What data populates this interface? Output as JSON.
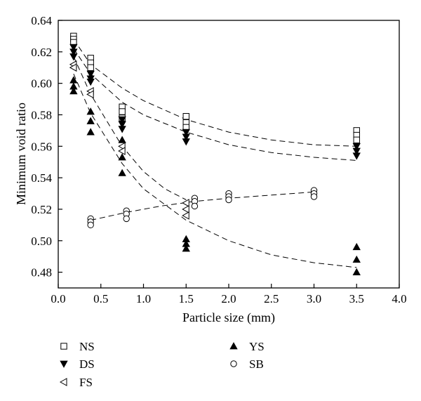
{
  "chart_data": {
    "type": "scatter",
    "title": "",
    "xlabel": "Particle size (mm)",
    "ylabel": "Minimum void ratio",
    "xlim": [
      0.0,
      4.0
    ],
    "ylim": [
      0.47,
      0.64
    ],
    "xticks": [
      0.0,
      0.5,
      1.0,
      1.5,
      2.0,
      2.5,
      3.0,
      3.5,
      4.0
    ],
    "xtick_labels": [
      "0.0",
      "0.5",
      "1.0",
      "1.5",
      "2.0",
      "2.5",
      "3.0",
      "3.5",
      "4.0"
    ],
    "yticks": [
      0.48,
      0.5,
      0.52,
      0.54,
      0.56,
      0.58,
      0.6,
      0.62,
      0.64
    ],
    "ytick_labels": [
      "0.48",
      "0.50",
      "0.52",
      "0.54",
      "0.56",
      "0.58",
      "0.60",
      "0.62",
      "0.64"
    ],
    "grid": false,
    "legend_position": "bottom",
    "series": [
      {
        "name": "NS",
        "marker": "square-open",
        "points": [
          [
            0.18,
            0.63
          ],
          [
            0.18,
            0.628
          ],
          [
            0.18,
            0.626
          ],
          [
            0.38,
            0.616
          ],
          [
            0.38,
            0.613
          ],
          [
            0.38,
            0.61
          ],
          [
            0.75,
            0.585
          ],
          [
            0.75,
            0.582
          ],
          [
            0.75,
            0.578
          ],
          [
            1.5,
            0.579
          ],
          [
            1.5,
            0.575
          ],
          [
            1.5,
            0.572
          ],
          [
            3.5,
            0.57
          ],
          [
            3.5,
            0.567
          ],
          [
            3.5,
            0.564
          ]
        ],
        "trend": [
          [
            0.18,
            0.628
          ],
          [
            0.38,
            0.612
          ],
          [
            0.75,
            0.597
          ],
          [
            1.0,
            0.589
          ],
          [
            1.5,
            0.577
          ],
          [
            2.0,
            0.569
          ],
          [
            2.5,
            0.564
          ],
          [
            3.0,
            0.561
          ],
          [
            3.5,
            0.56
          ]
        ]
      },
      {
        "name": "DS",
        "marker": "triangle-down-filled",
        "points": [
          [
            0.18,
            0.623
          ],
          [
            0.18,
            0.62
          ],
          [
            0.18,
            0.617
          ],
          [
            0.38,
            0.606
          ],
          [
            0.38,
            0.603
          ],
          [
            0.38,
            0.601
          ],
          [
            0.75,
            0.577
          ],
          [
            0.75,
            0.574
          ],
          [
            0.75,
            0.571
          ],
          [
            1.5,
            0.569
          ],
          [
            1.5,
            0.566
          ],
          [
            1.5,
            0.563
          ],
          [
            3.5,
            0.56
          ],
          [
            3.5,
            0.557
          ],
          [
            3.5,
            0.554
          ]
        ],
        "trend": [
          [
            0.18,
            0.622
          ],
          [
            0.38,
            0.606
          ],
          [
            0.75,
            0.588
          ],
          [
            1.0,
            0.58
          ],
          [
            1.5,
            0.569
          ],
          [
            2.0,
            0.561
          ],
          [
            2.5,
            0.556
          ],
          [
            3.0,
            0.553
          ],
          [
            3.5,
            0.551
          ]
        ]
      },
      {
        "name": "FS",
        "marker": "triangle-left-open",
        "points": [
          [
            0.18,
            0.612
          ],
          [
            0.18,
            0.61
          ],
          [
            0.38,
            0.595
          ],
          [
            0.38,
            0.593
          ],
          [
            0.75,
            0.56
          ],
          [
            0.75,
            0.557
          ],
          [
            1.5,
            0.524
          ],
          [
            1.5,
            0.52
          ],
          [
            1.5,
            0.516
          ]
        ],
        "trend": [
          [
            0.18,
            0.617
          ],
          [
            0.38,
            0.593
          ],
          [
            0.75,
            0.56
          ],
          [
            1.0,
            0.544
          ],
          [
            1.25,
            0.533
          ],
          [
            1.5,
            0.526
          ]
        ]
      },
      {
        "name": "YS",
        "marker": "triangle-up-filled",
        "points": [
          [
            0.18,
            0.602
          ],
          [
            0.18,
            0.598
          ],
          [
            0.18,
            0.595
          ],
          [
            0.38,
            0.582
          ],
          [
            0.38,
            0.576
          ],
          [
            0.38,
            0.569
          ],
          [
            0.75,
            0.564
          ],
          [
            0.75,
            0.553
          ],
          [
            0.75,
            0.543
          ],
          [
            1.5,
            0.501
          ],
          [
            1.5,
            0.498
          ],
          [
            1.5,
            0.495
          ],
          [
            3.5,
            0.496
          ],
          [
            3.5,
            0.488
          ],
          [
            3.5,
            0.48
          ]
        ],
        "trend": [
          [
            0.18,
            0.606
          ],
          [
            0.38,
            0.581
          ],
          [
            0.75,
            0.549
          ],
          [
            1.0,
            0.533
          ],
          [
            1.5,
            0.513
          ],
          [
            2.0,
            0.5
          ],
          [
            2.5,
            0.491
          ],
          [
            3.0,
            0.486
          ],
          [
            3.5,
            0.483
          ]
        ]
      },
      {
        "name": "SB",
        "marker": "circle-open",
        "points": [
          [
            0.38,
            0.514
          ],
          [
            0.38,
            0.512
          ],
          [
            0.38,
            0.51
          ],
          [
            0.8,
            0.519
          ],
          [
            0.8,
            0.517
          ],
          [
            0.8,
            0.514
          ],
          [
            1.6,
            0.527
          ],
          [
            1.6,
            0.525
          ],
          [
            1.6,
            0.522
          ],
          [
            2.0,
            0.53
          ],
          [
            2.0,
            0.528
          ],
          [
            2.0,
            0.526
          ],
          [
            3.0,
            0.532
          ],
          [
            3.0,
            0.53
          ],
          [
            3.0,
            0.528
          ]
        ],
        "trend": [
          [
            0.38,
            0.513
          ],
          [
            0.8,
            0.518
          ],
          [
            1.2,
            0.522
          ],
          [
            1.6,
            0.525
          ],
          [
            2.0,
            0.527
          ],
          [
            2.5,
            0.529
          ],
          [
            3.0,
            0.531
          ]
        ]
      }
    ]
  }
}
